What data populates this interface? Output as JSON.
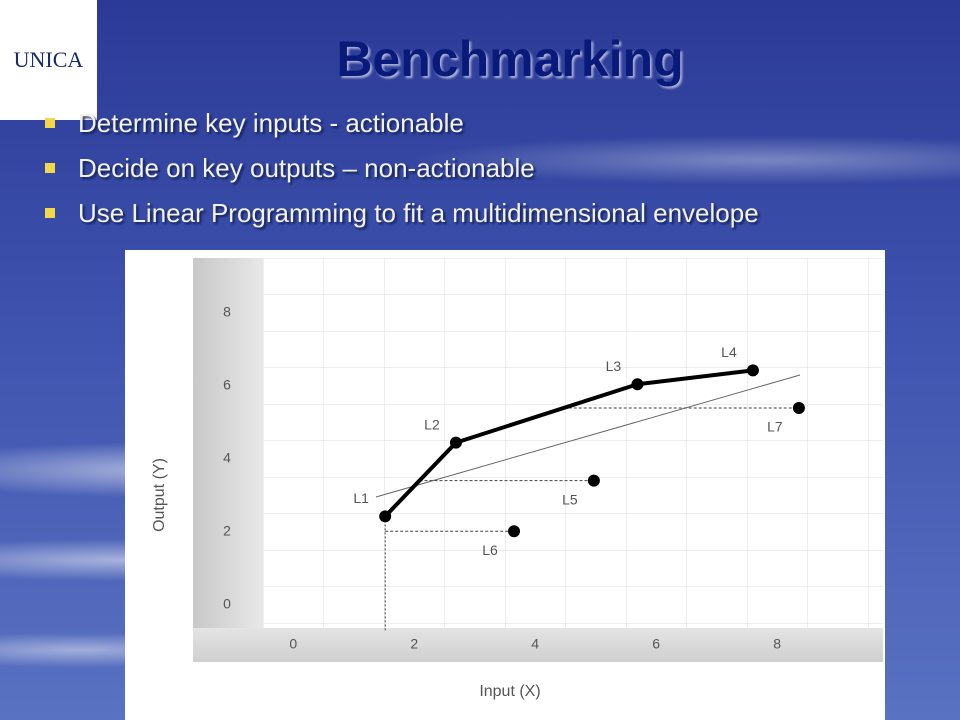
{
  "slide": {
    "logo": "UNICA",
    "title": "Benchmarking",
    "bullets": [
      "Determine key inputs - actionable",
      "Decide on key outputs – non-actionable",
      "Use Linear Programming to fit a multidimensional envelope"
    ]
  },
  "chart_data": {
    "type": "scatter",
    "xlabel": "Input (X)",
    "ylabel": "Output (Y)",
    "labels": [
      "L1",
      "L2",
      "L3",
      "L4",
      "L5",
      "L6",
      "L7"
    ],
    "x": [
      1.52,
      2.69,
      5.69,
      7.6,
      4.97,
      3.65,
      8.36
    ],
    "y": [
      2.42,
      4.44,
      6.04,
      6.42,
      3.4,
      2.01,
      5.39
    ],
    "color": "#000000",
    "xlim": [
      -0.5,
      9.75
    ],
    "ylim": [
      -0.75,
      9.5
    ],
    "xticks": [
      0,
      2,
      4,
      6,
      8
    ],
    "yticks": [
      0,
      2,
      4,
      6,
      8
    ]
  }
}
